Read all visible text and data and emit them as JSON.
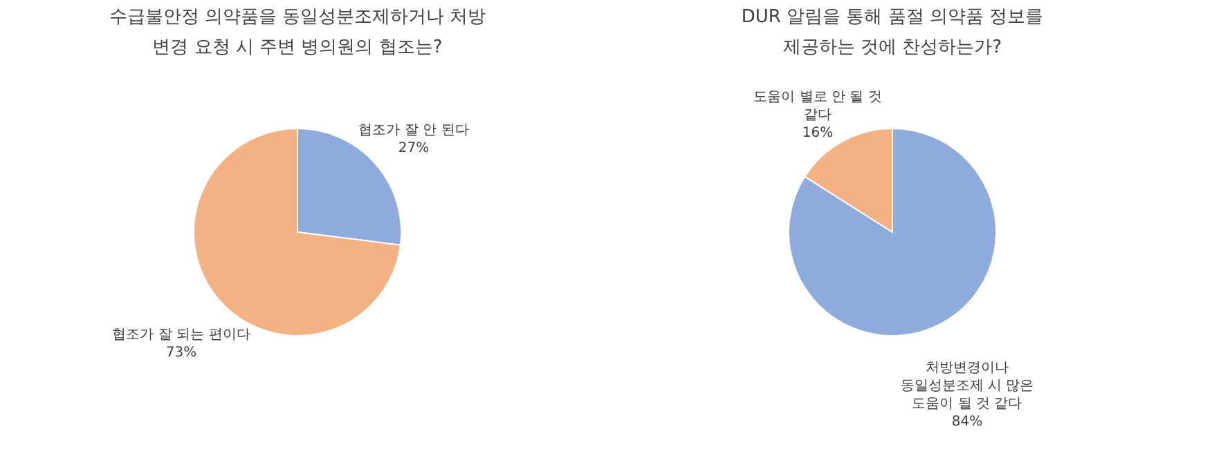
{
  "chart_data": [
    {
      "type": "pie",
      "title": "수급불안정 의약품을 동일성분조제하거나 처방 변경 요청 시 주변 병의원의 협조는?",
      "categories": [
        "협조가 잘 안 된다",
        "협조가 잘 되는 편이다"
      ],
      "values": [
        27,
        73
      ],
      "colors": [
        "#8faadc",
        "#f4b183"
      ],
      "value_labels": [
        "27%",
        "73%"
      ]
    },
    {
      "type": "pie",
      "title": "DUR 알림을 통해 품절 의약품 정보를 제공하는 것에 찬성하는가?",
      "categories": [
        "처방변경이나 동일성분조제 시 많은 도움이 될 것 같다",
        "도움이 별로 안 될 것 같다"
      ],
      "values": [
        84,
        16
      ],
      "colors": [
        "#8faadc",
        "#f4b183"
      ],
      "value_labels": [
        "84%",
        "16%"
      ]
    }
  ]
}
